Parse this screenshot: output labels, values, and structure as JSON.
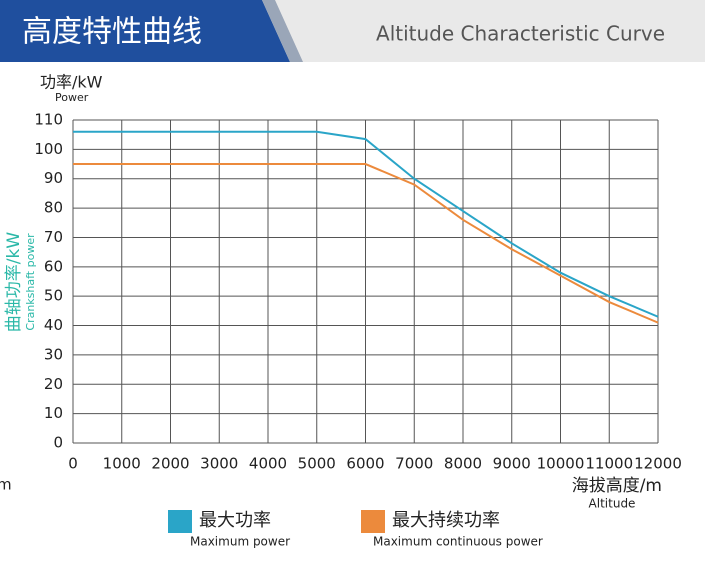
{
  "header": {
    "title": "高度特性曲线",
    "subtitle": "Altitude Characteristic Curve"
  },
  "fragment": "m",
  "chart_data": {
    "type": "line",
    "y_unit_label": "功率/kW",
    "y_unit_label_en": "Power",
    "y_axis_label": "曲轴功率/kW",
    "y_axis_label_en": "Crankshaft power",
    "x_axis_label": "海拔高度/m",
    "x_axis_label_en": "Altitude",
    "x": [
      0,
      1000,
      2000,
      3000,
      4000,
      5000,
      6000,
      7000,
      8000,
      9000,
      10000,
      11000,
      12000
    ],
    "series": [
      {
        "name": "最大功率",
        "name_en": "Maximum power",
        "color": "#2aa5c8",
        "values": [
          106,
          106,
          106,
          106,
          106,
          106,
          103.5,
          90,
          79,
          68,
          58,
          50,
          43
        ]
      },
      {
        "name": "最大持续功率",
        "name_en": "Maximum continuous power",
        "color": "#ec8a3c",
        "values": [
          95,
          95,
          95,
          95,
          95,
          95,
          95,
          88,
          76,
          66,
          57,
          48,
          41
        ]
      }
    ],
    "xlim": [
      0,
      12000
    ],
    "xticks": [
      0,
      1000,
      2000,
      3000,
      4000,
      5000,
      6000,
      7000,
      8000,
      9000,
      10000,
      11000,
      12000
    ],
    "ylim": [
      0,
      110
    ],
    "yticks": [
      0,
      10,
      20,
      30,
      40,
      50,
      60,
      70,
      80,
      90,
      100,
      110
    ],
    "grid": true
  }
}
